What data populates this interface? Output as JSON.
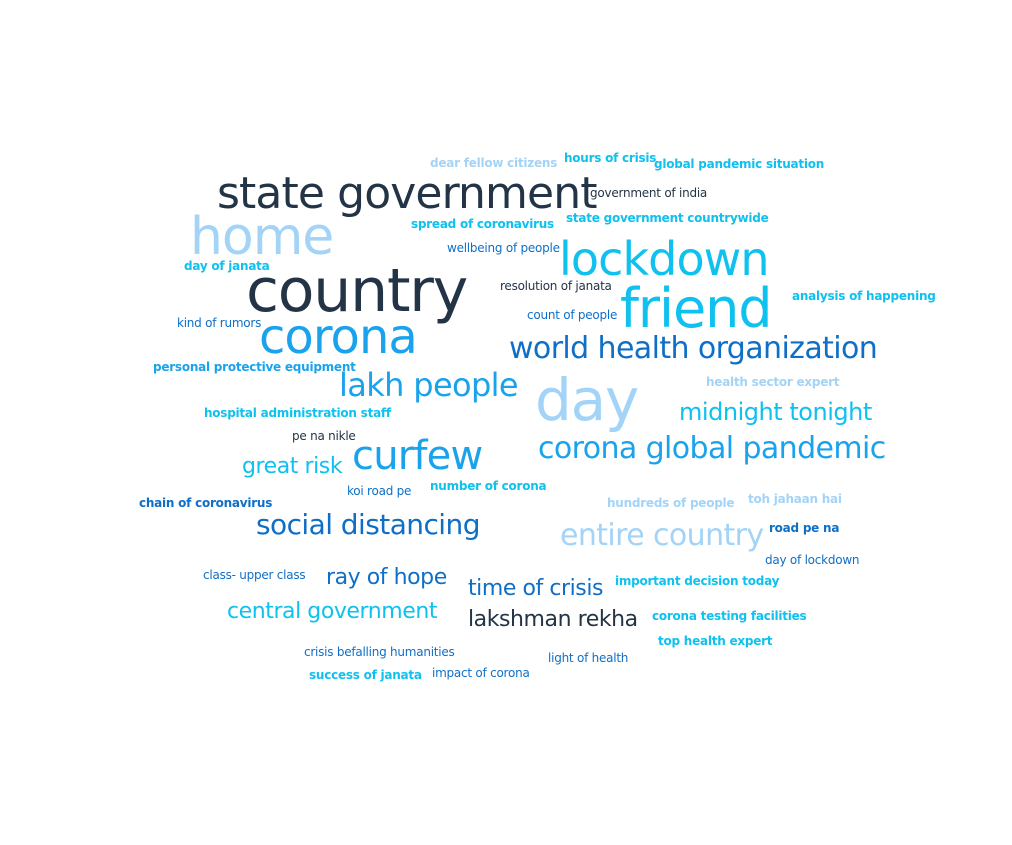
{
  "colors": {
    "navy": "#243447",
    "blue": "#0f6fc6",
    "azure": "#1aa3ec",
    "cyan": "#0ec1ef",
    "light": "#a3d4f7"
  },
  "words": [
    {
      "text": "dear fellow citizens",
      "color": "light"
    },
    {
      "text": "hours of crisis",
      "color": "cyan"
    },
    {
      "text": "global pandemic situation",
      "color": "cyan"
    },
    {
      "text": "state government",
      "color": "navy"
    },
    {
      "text": "government of india",
      "color": "navy"
    },
    {
      "text": "home",
      "color": "light"
    },
    {
      "text": "spread of coronavirus",
      "color": "cyan"
    },
    {
      "text": "state government countrywide",
      "color": "cyan"
    },
    {
      "text": "wellbeing of people",
      "color": "blue"
    },
    {
      "text": "lockdown",
      "color": "cyan"
    },
    {
      "text": "day of janata",
      "color": "cyan"
    },
    {
      "text": "country",
      "color": "navy"
    },
    {
      "text": "resolution of janata",
      "color": "navy"
    },
    {
      "text": "friend",
      "color": "cyan"
    },
    {
      "text": "analysis of happening",
      "color": "cyan"
    },
    {
      "text": "count of people",
      "color": "blue"
    },
    {
      "text": "kind of rumors",
      "color": "blue"
    },
    {
      "text": "corona",
      "color": "azure"
    },
    {
      "text": "world health organization",
      "color": "blue"
    },
    {
      "text": "personal protective equipment",
      "color": "azure"
    },
    {
      "text": "lakh people",
      "color": "azure"
    },
    {
      "text": "day",
      "color": "light"
    },
    {
      "text": "health sector expert",
      "color": "light"
    },
    {
      "text": "hospital administration staff",
      "color": "cyan"
    },
    {
      "text": "midnight tonight",
      "color": "cyan"
    },
    {
      "text": "pe na nikle",
      "color": "navy"
    },
    {
      "text": "curfew",
      "color": "azure"
    },
    {
      "text": "corona global pandemic",
      "color": "azure"
    },
    {
      "text": "great risk",
      "color": "cyan"
    },
    {
      "text": "koi road pe",
      "color": "blue"
    },
    {
      "text": "number of corona",
      "color": "cyan"
    },
    {
      "text": "chain of coronavirus",
      "color": "blue"
    },
    {
      "text": "hundreds of people",
      "color": "light"
    },
    {
      "text": "toh jahaan hai",
      "color": "light"
    },
    {
      "text": "social distancing",
      "color": "blue"
    },
    {
      "text": "entire country",
      "color": "light"
    },
    {
      "text": "road pe na",
      "color": "blue"
    },
    {
      "text": "day of lockdown",
      "color": "blue"
    },
    {
      "text": "class- upper class",
      "color": "blue"
    },
    {
      "text": "ray of hope",
      "color": "blue"
    },
    {
      "text": "time of crisis",
      "color": "blue"
    },
    {
      "text": "important decision today",
      "color": "cyan"
    },
    {
      "text": "central government",
      "color": "cyan"
    },
    {
      "text": "lakshman rekha",
      "color": "navy"
    },
    {
      "text": "corona testing facilities",
      "color": "cyan"
    },
    {
      "text": "top health expert",
      "color": "cyan"
    },
    {
      "text": "crisis befalling humanities",
      "color": "blue"
    },
    {
      "text": "light of health",
      "color": "blue"
    },
    {
      "text": "success of janata",
      "color": "cyan"
    },
    {
      "text": "impact of corona",
      "color": "blue"
    }
  ]
}
